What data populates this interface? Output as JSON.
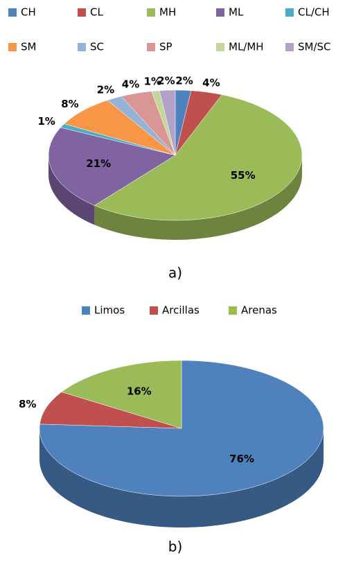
{
  "chart_data": [
    {
      "type": "pie3d",
      "caption": "a)",
      "categories": [
        "CH",
        "CL",
        "MH",
        "ML",
        "CL/CH",
        "SM",
        "SC",
        "SP",
        "ML/MH",
        "SM/SC"
      ],
      "values": [
        2,
        4,
        55,
        21,
        1,
        8,
        2,
        4,
        1,
        2
      ],
      "value_labels": [
        "2%",
        "4%",
        "55%",
        "21%",
        "1%",
        "8%",
        "2%",
        "4%",
        "1%",
        "2%"
      ],
      "colors": [
        "#4f81bd",
        "#c0504d",
        "#9bbb59",
        "#8064a2",
        "#4bacc6",
        "#f79646",
        "#95b3d7",
        "#d99694",
        "#c3d69b",
        "#b3a2c7"
      ],
      "legend": "top"
    },
    {
      "type": "pie3d",
      "caption": "b)",
      "categories": [
        "Limos",
        "Arcillas",
        "Arenas"
      ],
      "values": [
        76,
        8,
        16
      ],
      "value_labels": [
        "76%",
        "8%",
        "16%"
      ],
      "colors": [
        "#4f81bd",
        "#c0504d",
        "#9bbb59"
      ],
      "legend": "top"
    }
  ]
}
